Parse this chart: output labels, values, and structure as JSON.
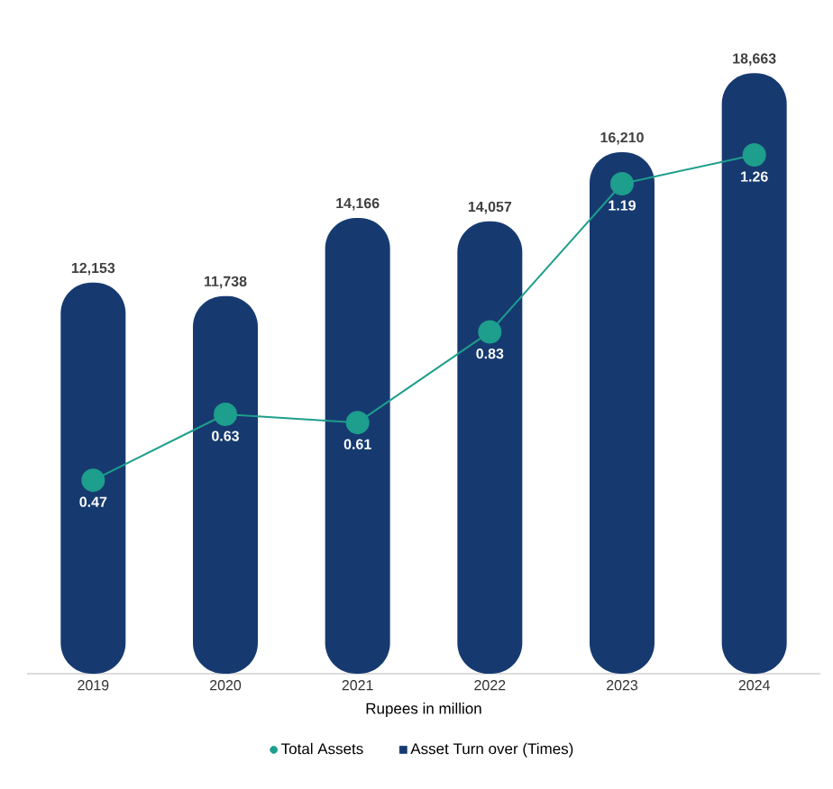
{
  "chart_data": {
    "type": "bar",
    "xlabel": "Rupees in million",
    "categories": [
      "2019",
      "2020",
      "2021",
      "2022",
      "2023",
      "2024"
    ],
    "series": [
      {
        "name": "Total Assets",
        "type": "line",
        "axis": "y2",
        "color": "#1e9e8c",
        "marker": "circle",
        "values": [
          0.47,
          0.63,
          0.61,
          0.83,
          1.19,
          1.26
        ],
        "value_labels": [
          "0.47",
          "0.63",
          "0.61",
          "0.83",
          "1.19",
          "1.26"
        ]
      },
      {
        "name": "Asset Turn over (Times)",
        "color": "#163a70",
        "values": [
          12153,
          11738,
          14166,
          14057,
          16210,
          18663
        ],
        "value_labels": [
          "12,153",
          "11,738",
          "14,166",
          "14,057",
          "16,210",
          "18,663"
        ]
      }
    ],
    "tick_labels": "x",
    "legend": "bottom"
  }
}
